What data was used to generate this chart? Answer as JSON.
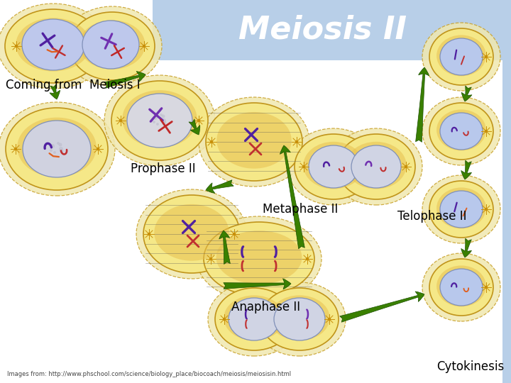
{
  "title": "Meiosis II",
  "title_color": "#ffffff",
  "title_fontsize": 32,
  "header_bg_color": "#b8cfe8",
  "main_bg_color": "#ffffff",
  "labels": {
    "coming_from": "Coming from  Meiosis I",
    "prophase": "Prophase II",
    "metaphase": "Metaphase II",
    "anaphase": "Anaphase II",
    "telophase": "Telophase II",
    "cytokinesis": "Cytokinesis",
    "images_from": "Images from: http://www.phschool.com/science/biology_place/biocoach/meiosis/meiosisin.html"
  },
  "label_fontsize": 11,
  "small_label_fontsize": 6,
  "arrow_color": "#3a8000",
  "right_bar_color": "#b8cfe8",
  "cells": {
    "outer_color": "#f5e090",
    "inner_color": "#e8c060",
    "nucleus_color": "#c8d0f0",
    "nucleus_gray": "#d0d0d8",
    "aster_color": "#c8900a",
    "aster_ray_color": "#c8900a",
    "spindle_color": "#555555"
  }
}
